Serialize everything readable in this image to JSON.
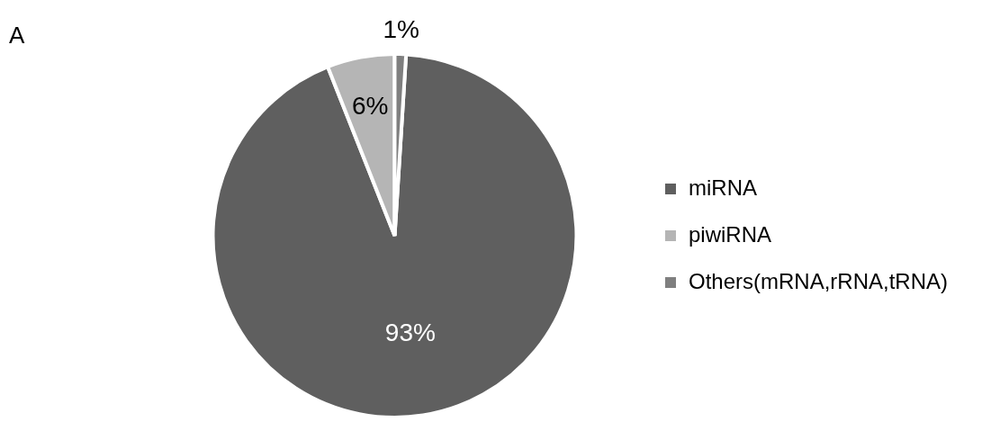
{
  "chart_data": {
    "type": "pie",
    "categories": [
      "miRNA",
      "piwiRNA",
      "Others(mRNA,rRNA,tRNA)"
    ],
    "values": [
      93,
      6,
      1
    ],
    "colors": [
      "#5f5f5f",
      "#b5b5b5",
      "#7f7f7f"
    ],
    "value_labels": [
      "93%",
      "6%",
      "1%"
    ],
    "legend": "right",
    "annotations": [
      "A"
    ]
  }
}
